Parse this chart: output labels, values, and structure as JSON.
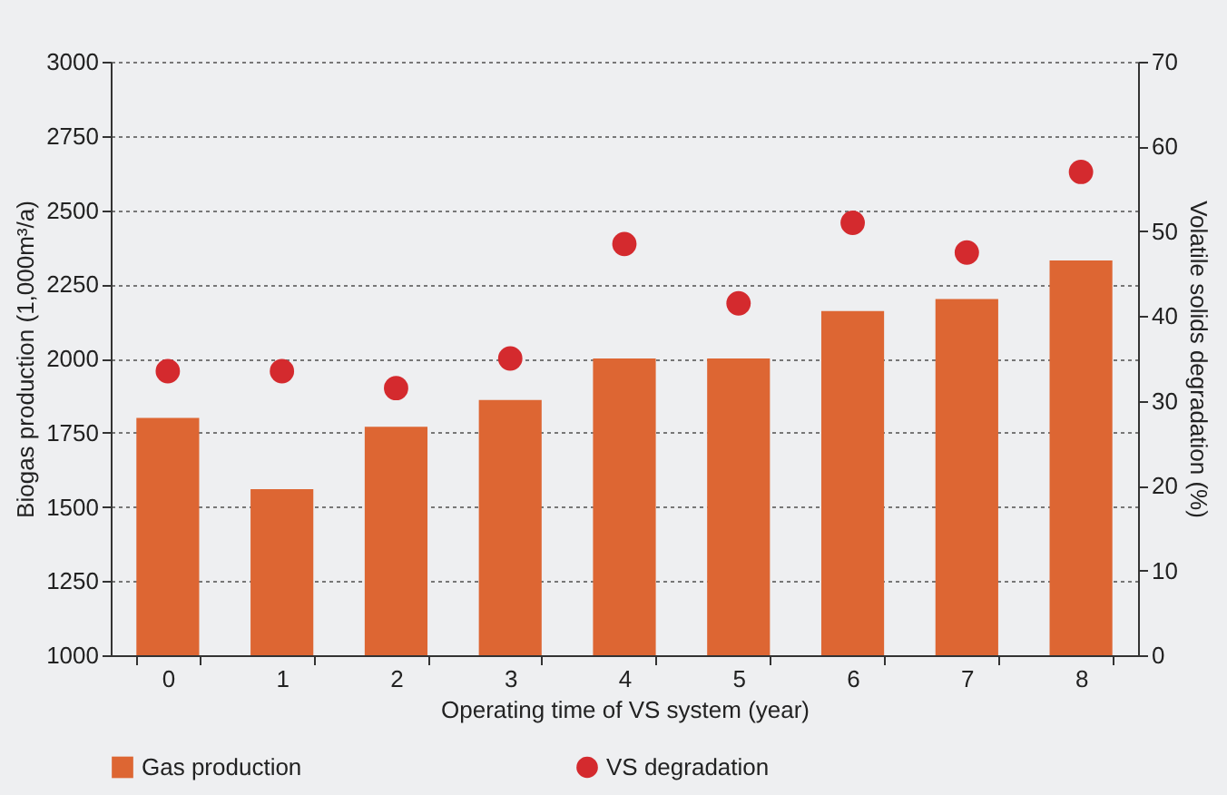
{
  "chart_data": {
    "type": "bar",
    "categories": [
      "0",
      "1",
      "2",
      "3",
      "4",
      "5",
      "6",
      "7",
      "8"
    ],
    "xlabel": "Operating time of VS system (year)",
    "ylabel": "Biogas production (1,000m³/a)",
    "y2label": "Volatile solids degradation (%)",
    "series": [
      {
        "name": "Gas production",
        "color": "#dd6633",
        "values": [
          1800,
          1560,
          1770,
          1860,
          2000,
          2000,
          2160,
          2200,
          2330
        ]
      },
      {
        "name": "VS degradation",
        "type": "scatter",
        "axis": "y2",
        "color": "#d42a2e",
        "marker": "circle",
        "values": [
          33.5,
          33.5,
          31.5,
          35,
          48.5,
          41.5,
          51,
          47.5,
          57
        ]
      }
    ],
    "ylim": [
      1000,
      3000
    ],
    "yticks": [
      1000,
      1250,
      1500,
      1750,
      2000,
      2250,
      2500,
      2750,
      3000
    ],
    "y2lim": [
      0,
      70
    ],
    "y2ticks": [
      0,
      10,
      20,
      30,
      40,
      50,
      60,
      70
    ],
    "grid": "y",
    "legend": "bottom left"
  }
}
